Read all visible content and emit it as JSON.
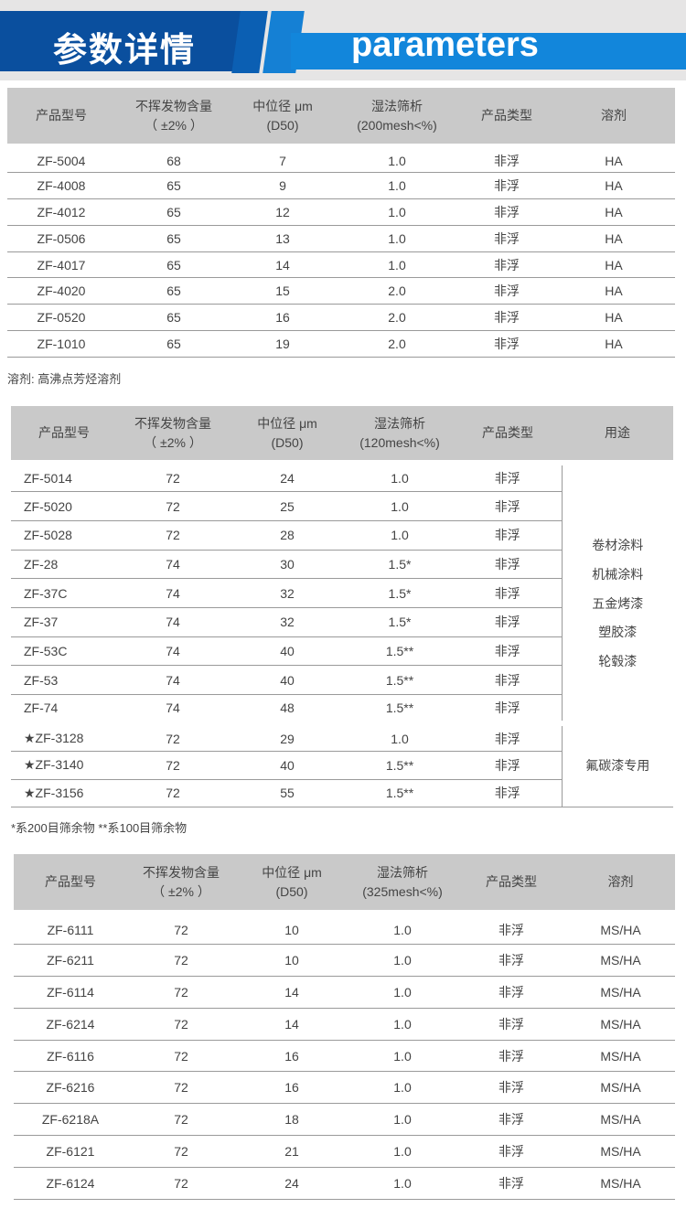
{
  "header": {
    "title_cn": "参数详情",
    "title_en": "parameters"
  },
  "table1": {
    "headers": [
      "产品型号",
      "不挥发物含量\n（ ±2% ）",
      "中位径 μm\n(D50)",
      "湿法筛析\n(200mesh<%)",
      "产品类型",
      "溶剂"
    ],
    "rows": [
      [
        "ZF-5004",
        "68",
        "7",
        "1.0",
        "非浮",
        "HA"
      ],
      [
        "ZF-4008",
        "65",
        "9",
        "1.0",
        "非浮",
        "HA"
      ],
      [
        "ZF-4012",
        "65",
        "12",
        "1.0",
        "非浮",
        "HA"
      ],
      [
        "ZF-0506",
        "65",
        "13",
        "1.0",
        "非浮",
        "HA"
      ],
      [
        "ZF-4017",
        "65",
        "14",
        "1.0",
        "非浮",
        "HA"
      ],
      [
        "ZF-4020",
        "65",
        "15",
        "2.0",
        "非浮",
        "HA"
      ],
      [
        "ZF-0520",
        "65",
        "16",
        "2.0",
        "非浮",
        "HA"
      ],
      [
        "ZF-1010",
        "65",
        "19",
        "2.0",
        "非浮",
        "HA"
      ]
    ],
    "note": "溶剂: 高沸点芳烃溶剂"
  },
  "table2": {
    "headers": [
      "产品型号",
      "不挥发物含量\n（ ±2% ）",
      "中位径 μm\n(D50)",
      "湿法筛析\n(120mesh<%)",
      "产品类型",
      "用途"
    ],
    "rows": [
      [
        "ZF-5014",
        "72",
        "24",
        "1.0",
        "非浮"
      ],
      [
        "ZF-5020",
        "72",
        "25",
        "1.0",
        "非浮"
      ],
      [
        "ZF-5028",
        "72",
        "28",
        "1.0",
        "非浮"
      ],
      [
        "ZF-28",
        "74",
        "30",
        "1.5*",
        "非浮"
      ],
      [
        "ZF-37C",
        "74",
        "32",
        "1.5*",
        "非浮"
      ],
      [
        "ZF-37",
        "74",
        "32",
        "1.5*",
        "非浮"
      ],
      [
        "ZF-53C",
        "74",
        "40",
        "1.5**",
        "非浮"
      ],
      [
        "ZF-53",
        "74",
        "40",
        "1.5**",
        "非浮"
      ],
      [
        "ZF-74",
        "74",
        "48",
        "1.5**",
        "非浮"
      ]
    ],
    "uses": [
      "卷材涂料",
      "机械涂料",
      "五金烤漆",
      "塑胶漆",
      "轮毂漆"
    ],
    "rows_special": [
      [
        "★ZF-3128",
        "72",
        "29",
        "1.0",
        "非浮"
      ],
      [
        "★ZF-3140",
        "72",
        "40",
        "1.5**",
        "非浮"
      ],
      [
        "★ZF-3156",
        "72",
        "55",
        "1.5**",
        "非浮"
      ]
    ],
    "special_use": "氟碳漆专用",
    "note": "*系200目筛余物   **系100目筛余物"
  },
  "table3": {
    "headers": [
      "产品型号",
      "不挥发物含量\n（ ±2% ）",
      "中位径 μm\n(D50)",
      "湿法筛析\n(325mesh<%)",
      "产品类型",
      "溶剂"
    ],
    "rows": [
      [
        "ZF-6111",
        "72",
        "10",
        "1.0",
        "非浮",
        "MS/HA"
      ],
      [
        "ZF-6211",
        "72",
        "10",
        "1.0",
        "非浮",
        "MS/HA"
      ],
      [
        "ZF-6114",
        "72",
        "14",
        "1.0",
        "非浮",
        "MS/HA"
      ],
      [
        "ZF-6214",
        "72",
        "14",
        "1.0",
        "非浮",
        "MS/HA"
      ],
      [
        "ZF-6116",
        "72",
        "16",
        "1.0",
        "非浮",
        "MS/HA"
      ],
      [
        "ZF-6216",
        "72",
        "16",
        "1.0",
        "非浮",
        "MS/HA"
      ],
      [
        "ZF-6218A",
        "72",
        "18",
        "1.0",
        "非浮",
        "MS/HA"
      ],
      [
        "ZF-6121",
        "72",
        "21",
        "1.0",
        "非浮",
        "MS/HA"
      ],
      [
        "ZF-6124",
        "72",
        "24",
        "1.0",
        "非浮",
        "MS/HA"
      ]
    ]
  }
}
